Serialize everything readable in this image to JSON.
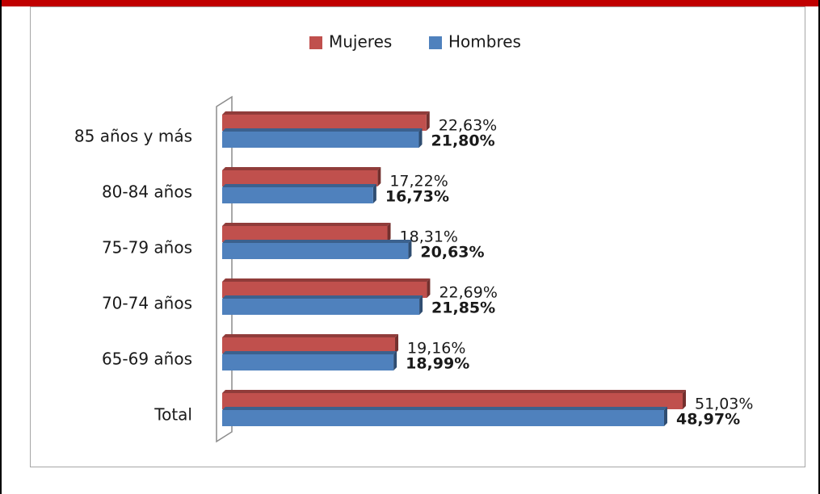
{
  "chart_data": {
    "type": "bar",
    "orientation": "horizontal",
    "categories": [
      "85 años y más",
      "80-84 años",
      "75-79 años",
      "70-74 años",
      "65-69 años",
      "Total"
    ],
    "series": [
      {
        "name": "Mujeres",
        "color": "#c0504d",
        "values": [
          22.63,
          17.22,
          18.31,
          22.69,
          19.16,
          51.03
        ],
        "value_labels": [
          "22,63%",
          "17,22%",
          "18,31%",
          "22,69%",
          "19,16%",
          "51,03%"
        ]
      },
      {
        "name": "Hombres",
        "color": "#4f81bd",
        "values": [
          21.8,
          16.73,
          20.63,
          21.85,
          18.99,
          48.97
        ],
        "value_labels": [
          "21,80%",
          "16,73%",
          "20,63%",
          "21,85%",
          "18,99%",
          "48,97%"
        ]
      }
    ],
    "legend": "top"
  }
}
